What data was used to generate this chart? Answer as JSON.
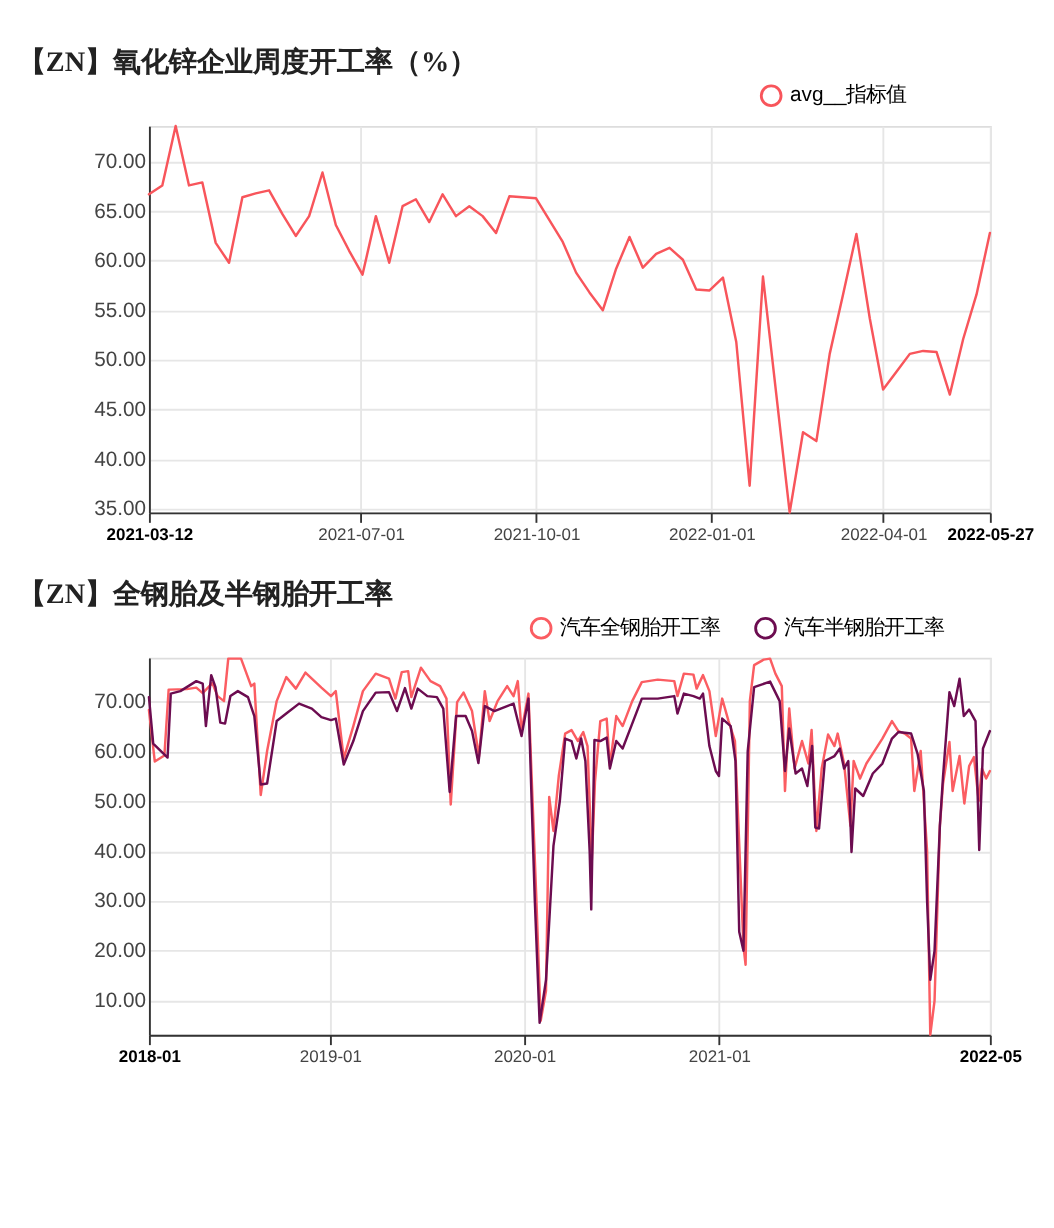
{
  "chart_data": [
    {
      "type": "line",
      "title": "【ZN】氧化锌企业周度开工率（%）",
      "legend": "top right",
      "grid": true,
      "x": [
        "2021-03-12",
        "2021-03-19",
        "2021-03-26",
        "2021-04-02",
        "2021-04-09",
        "2021-04-16",
        "2021-04-23",
        "2021-04-30",
        "2021-05-07",
        "2021-05-14",
        "2021-05-21",
        "2021-05-28",
        "2021-06-04",
        "2021-06-11",
        "2021-06-18",
        "2021-06-25",
        "2021-07-02",
        "2021-07-09",
        "2021-07-16",
        "2021-07-23",
        "2021-07-30",
        "2021-08-06",
        "2021-08-13",
        "2021-08-20",
        "2021-08-27",
        "2021-09-03",
        "2021-09-10",
        "2021-09-17",
        "2021-09-24",
        "2021-10-01",
        "2021-10-08",
        "2021-10-15",
        "2021-10-22",
        "2021-10-29",
        "2021-11-05",
        "2021-11-12",
        "2021-11-19",
        "2021-11-26",
        "2021-12-03",
        "2021-12-10",
        "2021-12-17",
        "2021-12-24",
        "2021-12-31",
        "2022-01-07",
        "2022-01-14",
        "2022-01-21",
        "2022-01-28",
        "2022-02-04",
        "2022-02-11",
        "2022-02-18",
        "2022-02-25",
        "2022-03-04",
        "2022-03-11",
        "2022-03-18",
        "2022-03-25",
        "2022-04-01",
        "2022-04-08",
        "2022-04-15",
        "2022-04-22",
        "2022-04-29",
        "2022-05-06",
        "2022-05-13",
        "2022-05-20",
        "2022-05-27"
      ],
      "series": [
        {
          "name": "avg__指标值",
          "color": "#f8555b",
          "values": [
            66.7,
            67.6,
            73.6,
            67.6,
            67.9,
            61.8,
            59.8,
            66.4,
            66.8,
            67.1,
            64.7,
            62.5,
            64.5,
            68.9,
            63.6,
            61.0,
            58.6,
            64.5,
            59.8,
            65.5,
            66.2,
            63.9,
            66.7,
            64.5,
            65.5,
            64.5,
            62.8,
            66.5,
            66.4,
            66.3,
            64.1,
            61.9,
            58.8,
            56.8,
            55.0,
            59.2,
            62.4,
            59.3,
            60.7,
            61.3,
            60.1,
            57.1,
            57.0,
            58.3,
            51.8,
            37.3,
            58.4,
            46.5,
            34.6,
            42.7,
            41.8,
            50.6,
            56.6,
            62.7,
            54.2,
            47.0,
            48.8,
            50.6,
            50.9,
            50.8,
            46.5,
            52.1,
            56.6,
            62.8
          ]
        }
      ],
      "xlim": [
        "2021-03-12",
        "2022-05-27"
      ],
      "xticks": [
        "2021-03-12",
        "2021-07-01",
        "2021-10-01",
        "2022-01-01",
        "2022-04-01",
        "2022-05-27"
      ],
      "ylim": [
        34.6,
        73.6
      ],
      "yticks": [
        {
          "value": 35,
          "label": "35.00"
        },
        {
          "value": 40,
          "label": "40.00"
        },
        {
          "value": 45,
          "label": "45.00"
        },
        {
          "value": 50,
          "label": "50.00"
        },
        {
          "value": 55,
          "label": "55.00"
        },
        {
          "value": 60,
          "label": "60.00"
        },
        {
          "value": 65,
          "label": "65.00"
        },
        {
          "value": 70,
          "label": "70.00"
        }
      ]
    },
    {
      "type": "line",
      "title": "【ZN】全钢胎及半钢胎开工率",
      "legend": "top right",
      "grid": true,
      "series": [
        {
          "name": "汽车全钢胎开工率",
          "color": "#fb5d62",
          "x": [
            "2018-01-26",
            "2018-02-06",
            "2018-02-24",
            "2018-03-04",
            "2018-04-07",
            "2018-04-25",
            "2018-05-07",
            "2018-05-25",
            "2018-06-04",
            "2018-06-16",
            "2018-06-24",
            "2018-07-18",
            "2018-08-06",
            "2018-08-12",
            "2018-08-24",
            "2018-09-05",
            "2018-09-23",
            "2018-10-11",
            "2018-10-29",
            "2018-11-16",
            "2018-11-28",
            "2018-12-16",
            "2019-01-03",
            "2019-01-12",
            "2019-01-27",
            "2019-02-14",
            "2019-03-04",
            "2019-03-28",
            "2019-04-22",
            "2019-05-04",
            "2019-05-16",
            "2019-05-28",
            "2019-06-03",
            "2019-06-21",
            "2019-07-09",
            "2019-07-27",
            "2019-08-08",
            "2019-08-16",
            "2019-08-28",
            "2019-09-09",
            "2019-09-25",
            "2019-10-08",
            "2019-10-19",
            "2019-10-28",
            "2019-11-12",
            "2019-11-30",
            "2019-12-12",
            "2019-12-20",
            "2019-12-27",
            "2020-01-09",
            "2020-01-24",
            "2020-02-01",
            "2020-02-11",
            "2020-02-17",
            "2020-02-25",
            "2020-03-06",
            "2020-03-18",
            "2020-03-30",
            "2020-04-11",
            "2020-04-21",
            "2020-04-29",
            "2020-05-07",
            "2020-05-13",
            "2020-05-23",
            "2020-06-04",
            "2020-06-10",
            "2020-06-22",
            "2020-07-04",
            "2020-07-22",
            "2020-08-09",
            "2020-09-08",
            "2020-10-09",
            "2020-10-15",
            "2020-10-27",
            "2020-11-14",
            "2020-11-20",
            "2020-12-02",
            "2020-12-14",
            "2020-12-26",
            "2021-01-07",
            "2021-01-19",
            "2021-01-31",
            "2021-02-16",
            "2021-02-20",
            "2021-02-28",
            "2021-03-08",
            "2021-03-26",
            "2021-04-07",
            "2021-04-17",
            "2021-04-29",
            "2021-05-05",
            "2021-05-13",
            "2021-05-23",
            "2021-06-06",
            "2021-06-18",
            "2021-06-24",
            "2021-07-03",
            "2021-07-13",
            "2021-07-25",
            "2021-08-06",
            "2021-08-12",
            "2021-08-24",
            "2021-09-05",
            "2021-09-11",
            "2021-09-23",
            "2021-10-05",
            "2021-10-23",
            "2021-11-04",
            "2021-11-22",
            "2021-12-04",
            "2021-12-16",
            "2021-12-28",
            "2022-01-03",
            "2022-01-15",
            "2022-01-27",
            "2022-02-02",
            "2022-02-10",
            "2022-02-20",
            "2022-02-26",
            "2022-03-10",
            "2022-03-16",
            "2022-03-29",
            "2022-04-07",
            "2022-04-16",
            "2022-04-25",
            "2022-05-04",
            "2022-05-10",
            "2022-05-18",
            "2022-05-25"
          ],
          "values": [
            68.2,
            57.9,
            59.1,
            72.3,
            72.4,
            72.7,
            71.6,
            73.6,
            71.0,
            70.0,
            78.5,
            78.5,
            73.0,
            73.5,
            51.2,
            60.0,
            70.0,
            74.8,
            72.5,
            75.7,
            74.5,
            72.7,
            71.0,
            72.0,
            58.5,
            65.0,
            72.0,
            75.5,
            74.5,
            70.5,
            75.8,
            76.0,
            70.8,
            76.7,
            74.0,
            73.0,
            70.5,
            49.3,
            69.8,
            71.7,
            68.0,
            58.9,
            72.0,
            66.0,
            70.0,
            73.0,
            71.0,
            74.0,
            64.0,
            71.5,
            30.0,
            6.0,
            12.0,
            50.8,
            44.0,
            55.0,
            63.5,
            64.2,
            62.0,
            63.8,
            61.0,
            38.0,
            53.8,
            66.0,
            66.5,
            57.0,
            67.0,
            65.0,
            70.0,
            73.8,
            74.3,
            74.0,
            71.0,
            75.5,
            75.3,
            72.5,
            75.2,
            72.0,
            63.0,
            70.5,
            66.0,
            62.0,
            20.9,
            17.2,
            70.0,
            77.2,
            78.3,
            78.5,
            75.5,
            73.0,
            52.0,
            68.5,
            56.5,
            62.0,
            57.5,
            64.2,
            44.0,
            56.5,
            63.3,
            61.0,
            63.5,
            57.5,
            45.0,
            58.0,
            54.5,
            57.5,
            60.5,
            62.5,
            66.0,
            64.0,
            63.5,
            62.5,
            52.0,
            60.0,
            40.0,
            3.2,
            10.0,
            45.0,
            53.5,
            61.8,
            52.0,
            59.0,
            49.5,
            57.0,
            58.8,
            50.0,
            56.5,
            54.5,
            56.0
          ]
        },
        {
          "name": "汽车半钢胎开工率",
          "color": "#6c0c50",
          "x": [
            "2018-01-26",
            "2018-02-03",
            "2018-03-02",
            "2018-03-08",
            "2018-03-26",
            "2018-04-25",
            "2018-05-07",
            "2018-05-13",
            "2018-05-23",
            "2018-05-31",
            "2018-06-09",
            "2018-06-18",
            "2018-06-28",
            "2018-07-12",
            "2018-07-31",
            "2018-08-12",
            "2018-08-24",
            "2018-09-05",
            "2018-09-23",
            "2018-10-11",
            "2018-11-04",
            "2018-11-28",
            "2018-12-16",
            "2019-01-03",
            "2019-01-12",
            "2019-01-27",
            "2019-02-14",
            "2019-03-04",
            "2019-03-28",
            "2019-04-22",
            "2019-05-07",
            "2019-05-22",
            "2019-06-03",
            "2019-06-15",
            "2019-07-03",
            "2019-07-21",
            "2019-08-02",
            "2019-08-14",
            "2019-08-26",
            "2019-09-13",
            "2019-09-25",
            "2019-10-07",
            "2019-10-19",
            "2019-11-06",
            "2019-11-30",
            "2019-12-12",
            "2019-12-27",
            "2020-01-09",
            "2020-01-15",
            "2020-01-21",
            "2020-01-30",
            "2020-02-11",
            "2020-02-25",
            "2020-03-08",
            "2020-03-18",
            "2020-03-30",
            "2020-04-08",
            "2020-04-17",
            "2020-04-25",
            "2020-05-03",
            "2020-05-06",
            "2020-05-12",
            "2020-05-23",
            "2020-06-04",
            "2020-06-10",
            "2020-06-22",
            "2020-07-04",
            "2020-07-22",
            "2020-08-09",
            "2020-09-08",
            "2020-10-09",
            "2020-10-15",
            "2020-10-27",
            "2020-11-14",
            "2020-11-26",
            "2020-12-02",
            "2020-12-14",
            "2020-12-26",
            "2021-01-01",
            "2021-01-07",
            "2021-01-23",
            "2021-02-01",
            "2021-02-08",
            "2021-02-16",
            "2021-02-24",
            "2021-03-08",
            "2021-04-07",
            "2021-04-25",
            "2021-05-05",
            "2021-05-13",
            "2021-05-25",
            "2021-06-06",
            "2021-06-16",
            "2021-06-25",
            "2021-07-01",
            "2021-07-08",
            "2021-07-19",
            "2021-08-06",
            "2021-08-16",
            "2021-08-24",
            "2021-09-01",
            "2021-09-07",
            "2021-09-14",
            "2021-09-29",
            "2021-10-17",
            "2021-11-04",
            "2021-11-22",
            "2021-12-04",
            "2021-12-28",
            "2022-01-09",
            "2022-01-21",
            "2022-01-27",
            "2022-02-02",
            "2022-02-10",
            "2022-02-20",
            "2022-02-26",
            "2022-03-10",
            "2022-03-19",
            "2022-03-29",
            "2022-04-06",
            "2022-04-16",
            "2022-04-28",
            "2022-05-05",
            "2022-05-12",
            "2022-05-25"
          ],
          "values": [
            70.8,
            61.5,
            58.7,
            71.5,
            72.0,
            74.0,
            73.5,
            65.0,
            75.2,
            72.8,
            65.7,
            65.5,
            71.0,
            72.0,
            70.8,
            67.0,
            53.3,
            53.5,
            66.0,
            67.5,
            69.5,
            68.5,
            66.8,
            66.2,
            66.5,
            57.3,
            62.0,
            68.0,
            71.7,
            71.8,
            68.0,
            72.6,
            68.5,
            72.5,
            71.0,
            70.8,
            68.5,
            51.8,
            67.0,
            67.0,
            64.0,
            57.6,
            69.0,
            68.0,
            69.0,
            69.5,
            63.0,
            70.5,
            50.0,
            30.0,
            5.6,
            14.2,
            41.0,
            50.0,
            62.5,
            62.0,
            58.5,
            62.5,
            58.0,
            40.0,
            28.3,
            62.2,
            62.0,
            62.7,
            56.5,
            62.0,
            60.5,
            65.5,
            70.5,
            70.5,
            71.0,
            67.5,
            71.5,
            71.0,
            70.5,
            71.5,
            61.0,
            56.0,
            55.0,
            66.5,
            65.0,
            58.0,
            23.8,
            20.0,
            60.0,
            72.8,
            73.9,
            70.0,
            56.0,
            64.5,
            55.5,
            56.5,
            53.0,
            61.0,
            44.7,
            44.5,
            58.0,
            59.0,
            60.5,
            56.5,
            58.0,
            39.8,
            52.5,
            51.0,
            55.5,
            57.5,
            62.5,
            63.8,
            63.5,
            59.5,
            52.0,
            30.0,
            14.2,
            20.0,
            45.0,
            55.0,
            71.8,
            69.0,
            74.5,
            67.0,
            68.3,
            66.0,
            40.2,
            60.5,
            64.0
          ]
        }
      ],
      "xlim": [
        "2018-01-26",
        "2022-05-25"
      ],
      "xticks": [
        {
          "value": "2018-01-26",
          "label": "2018-01"
        },
        {
          "value": "2019-01-01",
          "label": "2019-01"
        },
        {
          "value": "2020-01-01",
          "label": "2020-01"
        },
        {
          "value": "2021-01-01",
          "label": "2021-01"
        },
        {
          "value": "2022-05-25",
          "label": "2022-05"
        }
      ],
      "ylim": [
        3.2,
        78.7
      ],
      "yticks": [
        {
          "value": 10,
          "label": "10.00"
        },
        {
          "value": 20,
          "label": "20.00"
        },
        {
          "value": 30,
          "label": "30.00"
        },
        {
          "value": 40,
          "label": "40.00"
        },
        {
          "value": 50,
          "label": "50.00"
        },
        {
          "value": 60,
          "label": "60.00"
        },
        {
          "value": 70,
          "label": "70.00"
        }
      ]
    }
  ]
}
